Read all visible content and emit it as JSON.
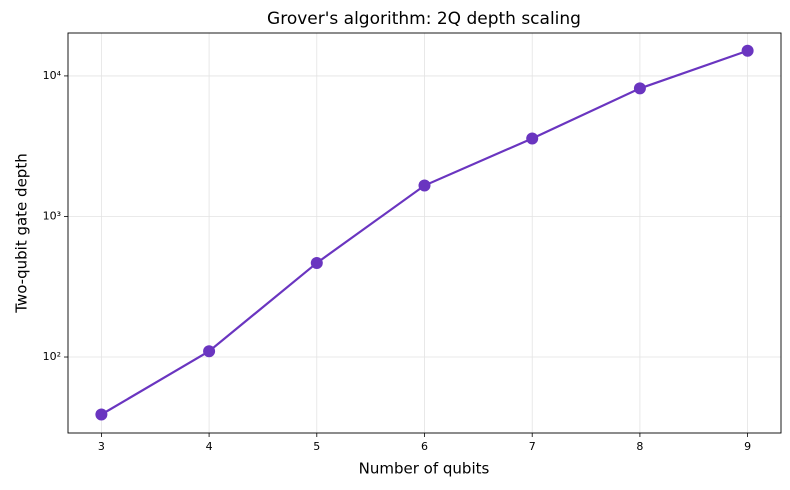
{
  "chart_data": {
    "type": "line",
    "title": "Grover's algorithm: 2Q depth scaling",
    "xlabel": "Number of qubits",
    "ylabel": "Two-qubit gate depth",
    "x": [
      3,
      4,
      5,
      6,
      7,
      8,
      9
    ],
    "series": [
      {
        "color": "#6a35c0",
        "values": [
          39,
          110,
          467,
          1660,
          3590,
          8150,
          15100
        ]
      }
    ],
    "xlim": [
      2.69,
      9.31
    ],
    "xticks": [
      3,
      4,
      5,
      6,
      7,
      8,
      9
    ],
    "ylim": [
      28.8,
      20200
    ],
    "yscale": "log",
    "yticks": [
      {
        "value": 100,
        "label": "10²"
      },
      {
        "value": 1000,
        "label": "10³"
      },
      {
        "value": 10000,
        "label": "10⁴"
      }
    ],
    "grid": true
  }
}
